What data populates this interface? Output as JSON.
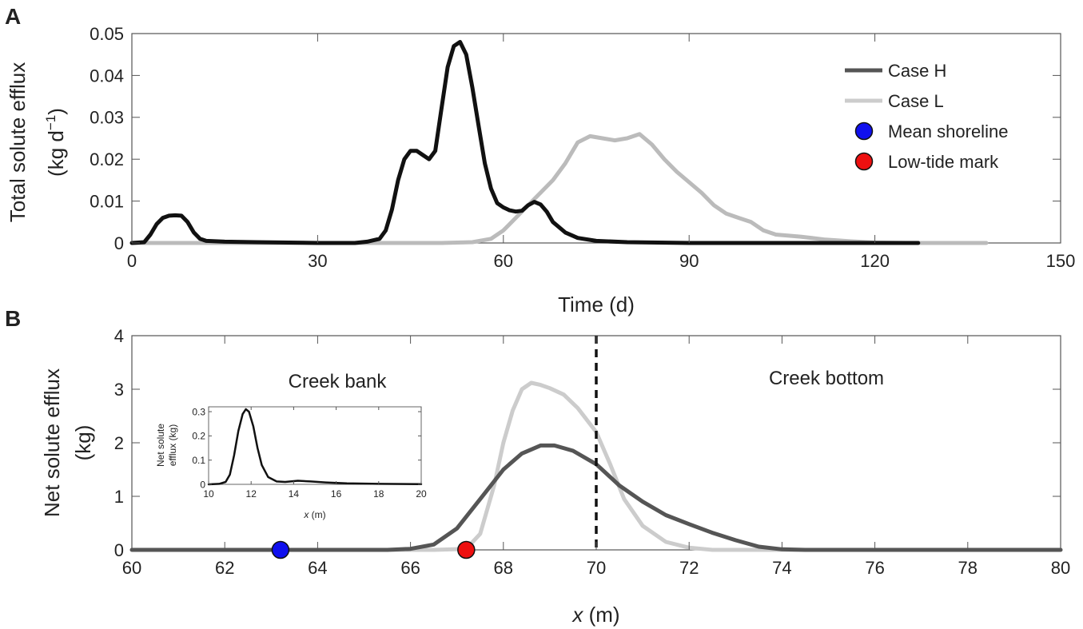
{
  "chart_data": [
    {
      "panel": "A",
      "type": "line",
      "xlabel": "Time (d)",
      "ylabel_line1": "Total solute efflux",
      "ylabel_line2_prefix": "(kg d",
      "ylabel_line2_exp": "−1",
      "ylabel_line2_suffix": ")",
      "xlim": [
        0,
        150
      ],
      "ylim": [
        0,
        0.05
      ],
      "xticks": [
        0,
        30,
        60,
        90,
        120,
        150
      ],
      "xtick_labels": [
        "0",
        "30",
        "60",
        "90",
        "120",
        "150"
      ],
      "yticks": [
        0,
        0.01,
        0.02,
        0.03,
        0.04,
        0.05
      ],
      "ytick_labels": [
        "0",
        "0.01",
        "0.02",
        "0.03",
        "0.04",
        "0.05"
      ],
      "grid": false,
      "legend_placement": "top-right",
      "legend": [
        {
          "label": "Case H",
          "kind": "line",
          "color": "#555555"
        },
        {
          "label": "Case L",
          "kind": "line",
          "color": "#cccccc"
        },
        {
          "label": "Mean shoreline",
          "kind": "marker",
          "color": "#1010ee"
        },
        {
          "label": "Low-tide mark",
          "kind": "marker",
          "color": "#ee1010"
        }
      ],
      "series": [
        {
          "name": "Case L",
          "color": "#bbbbbb",
          "points": [
            [
              0,
              0
            ],
            [
              50,
              0
            ],
            [
              55,
              0.0002
            ],
            [
              58,
              0.001
            ],
            [
              60,
              0.003
            ],
            [
              62,
              0.006
            ],
            [
              64,
              0.009
            ],
            [
              66,
              0.012
            ],
            [
              68,
              0.015
            ],
            [
              70,
              0.019
            ],
            [
              72,
              0.024
            ],
            [
              74,
              0.0255
            ],
            [
              76,
              0.025
            ],
            [
              78,
              0.0245
            ],
            [
              80,
              0.025
            ],
            [
              82,
              0.026
            ],
            [
              84,
              0.0235
            ],
            [
              86,
              0.02
            ],
            [
              88,
              0.017
            ],
            [
              90,
              0.0145
            ],
            [
              92,
              0.012
            ],
            [
              94,
              0.009
            ],
            [
              96,
              0.007
            ],
            [
              98,
              0.006
            ],
            [
              100,
              0.005
            ],
            [
              102,
              0.003
            ],
            [
              104,
              0.002
            ],
            [
              108,
              0.0015
            ],
            [
              112,
              0.0008
            ],
            [
              116,
              0.0004
            ],
            [
              120,
              0.0001
            ],
            [
              125,
              0
            ],
            [
              138,
              0
            ]
          ]
        },
        {
          "name": "Case H",
          "color": "#111111",
          "points": [
            [
              0,
              0
            ],
            [
              2,
              0.0002
            ],
            [
              3,
              0.002
            ],
            [
              4,
              0.0045
            ],
            [
              5,
              0.006
            ],
            [
              6,
              0.0065
            ],
            [
              7,
              0.0066
            ],
            [
              8,
              0.0065
            ],
            [
              9,
              0.005
            ],
            [
              10,
              0.0025
            ],
            [
              11,
              0.001
            ],
            [
              12,
              0.0005
            ],
            [
              15,
              0.0003
            ],
            [
              20,
              0.0002
            ],
            [
              30,
              0
            ],
            [
              36,
              0
            ],
            [
              38,
              0.0003
            ],
            [
              40,
              0.001
            ],
            [
              41,
              0.003
            ],
            [
              42,
              0.008
            ],
            [
              43,
              0.015
            ],
            [
              44,
              0.02
            ],
            [
              45,
              0.022
            ],
            [
              46,
              0.022
            ],
            [
              47,
              0.021
            ],
            [
              48,
              0.02
            ],
            [
              49,
              0.022
            ],
            [
              50,
              0.032
            ],
            [
              51,
              0.042
            ],
            [
              52,
              0.047
            ],
            [
              53,
              0.048
            ],
            [
              54,
              0.045
            ],
            [
              55,
              0.037
            ],
            [
              56,
              0.028
            ],
            [
              57,
              0.019
            ],
            [
              58,
              0.013
            ],
            [
              59,
              0.0095
            ],
            [
              60,
              0.0085
            ],
            [
              61,
              0.0078
            ],
            [
              62,
              0.0075
            ],
            [
              63,
              0.0077
            ],
            [
              64,
              0.009
            ],
            [
              65,
              0.0098
            ],
            [
              66,
              0.0092
            ],
            [
              67,
              0.0075
            ],
            [
              68,
              0.005
            ],
            [
              70,
              0.0025
            ],
            [
              72,
              0.0012
            ],
            [
              75,
              0.0005
            ],
            [
              80,
              0.0002
            ],
            [
              90,
              0
            ],
            [
              127,
              0
            ]
          ]
        }
      ]
    },
    {
      "panel": "B",
      "type": "line",
      "xlabel_var": "x",
      "xlabel_unit": " (m)",
      "ylabel_line1": "Net solute efflux",
      "ylabel_line2": "(kg)",
      "xlim": [
        60,
        80
      ],
      "ylim": [
        0,
        4
      ],
      "xticks": [
        60,
        62,
        64,
        66,
        68,
        70,
        72,
        74,
        76,
        78,
        80
      ],
      "xtick_labels": [
        "60",
        "62",
        "64",
        "66",
        "68",
        "70",
        "72",
        "74",
        "76",
        "78",
        "80"
      ],
      "yticks": [
        0,
        1,
        2,
        3,
        4
      ],
      "ytick_labels": [
        "0",
        "1",
        "2",
        "3",
        "4"
      ],
      "grid": false,
      "annotations": [
        {
          "text": "Creek bank"
        },
        {
          "text": "Creek bottom"
        }
      ],
      "divider_x": 70,
      "markers": [
        {
          "label": "Mean shoreline",
          "x": 63.2,
          "y": 0,
          "color": "#1010ee"
        },
        {
          "label": "Low-tide mark",
          "x": 67.2,
          "y": 0,
          "color": "#ee1010"
        }
      ],
      "series": [
        {
          "name": "Case L",
          "color": "#cccccc",
          "points": [
            [
              60,
              0
            ],
            [
              66.5,
              0
            ],
            [
              67.2,
              0.02
            ],
            [
              67.5,
              0.3
            ],
            [
              67.8,
              1.2
            ],
            [
              68.0,
              2.0
            ],
            [
              68.2,
              2.6
            ],
            [
              68.4,
              3.0
            ],
            [
              68.6,
              3.12
            ],
            [
              68.8,
              3.08
            ],
            [
              69.0,
              3.02
            ],
            [
              69.3,
              2.9
            ],
            [
              69.6,
              2.65
            ],
            [
              70.0,
              2.2
            ],
            [
              70.3,
              1.6
            ],
            [
              70.6,
              0.95
            ],
            [
              71.0,
              0.45
            ],
            [
              71.5,
              0.15
            ],
            [
              72.0,
              0.04
            ],
            [
              72.5,
              0
            ],
            [
              80,
              0
            ]
          ]
        },
        {
          "name": "Case H",
          "color": "#555555",
          "points": [
            [
              60,
              0
            ],
            [
              65.5,
              0
            ],
            [
              66.0,
              0.02
            ],
            [
              66.5,
              0.1
            ],
            [
              67.0,
              0.4
            ],
            [
              67.5,
              0.95
            ],
            [
              68.0,
              1.5
            ],
            [
              68.4,
              1.8
            ],
            [
              68.8,
              1.95
            ],
            [
              69.1,
              1.95
            ],
            [
              69.5,
              1.85
            ],
            [
              70.0,
              1.6
            ],
            [
              70.5,
              1.2
            ],
            [
              71.0,
              0.9
            ],
            [
              71.5,
              0.65
            ],
            [
              72.0,
              0.48
            ],
            [
              72.5,
              0.32
            ],
            [
              73.0,
              0.18
            ],
            [
              73.5,
              0.06
            ],
            [
              74.0,
              0.01
            ],
            [
              74.5,
              0
            ],
            [
              80,
              0
            ]
          ]
        }
      ],
      "inset": {
        "type": "line",
        "xlabel_var": "x",
        "xlabel_unit": " (m)",
        "ylabel_line1": "Net solute",
        "ylabel_line2": "efflux (kg)",
        "xlim": [
          10,
          20
        ],
        "ylim": [
          0,
          0.32
        ],
        "xticks": [
          10,
          12,
          14,
          16,
          18,
          20
        ],
        "xtick_labels": [
          "10",
          "12",
          "14",
          "16",
          "18",
          "20"
        ],
        "yticks": [
          0,
          0.1,
          0.2,
          0.3
        ],
        "ytick_labels": [
          "0",
          "0.1",
          "0.2",
          "0.3"
        ],
        "series": [
          {
            "color": "#111111",
            "points": [
              [
                10,
                0
              ],
              [
                10.5,
                0.002
              ],
              [
                10.8,
                0.01
              ],
              [
                11.0,
                0.04
              ],
              [
                11.2,
                0.12
              ],
              [
                11.4,
                0.22
              ],
              [
                11.6,
                0.29
              ],
              [
                11.75,
                0.31
              ],
              [
                11.9,
                0.3
              ],
              [
                12.1,
                0.24
              ],
              [
                12.3,
                0.15
              ],
              [
                12.5,
                0.08
              ],
              [
                12.8,
                0.03
              ],
              [
                13.2,
                0.012
              ],
              [
                13.6,
                0.01
              ],
              [
                14.2,
                0.015
              ],
              [
                14.8,
                0.012
              ],
              [
                15.5,
                0.008
              ],
              [
                16.5,
                0.004
              ],
              [
                18,
                0.002
              ],
              [
                20,
                0.001
              ]
            ]
          }
        ]
      }
    }
  ]
}
